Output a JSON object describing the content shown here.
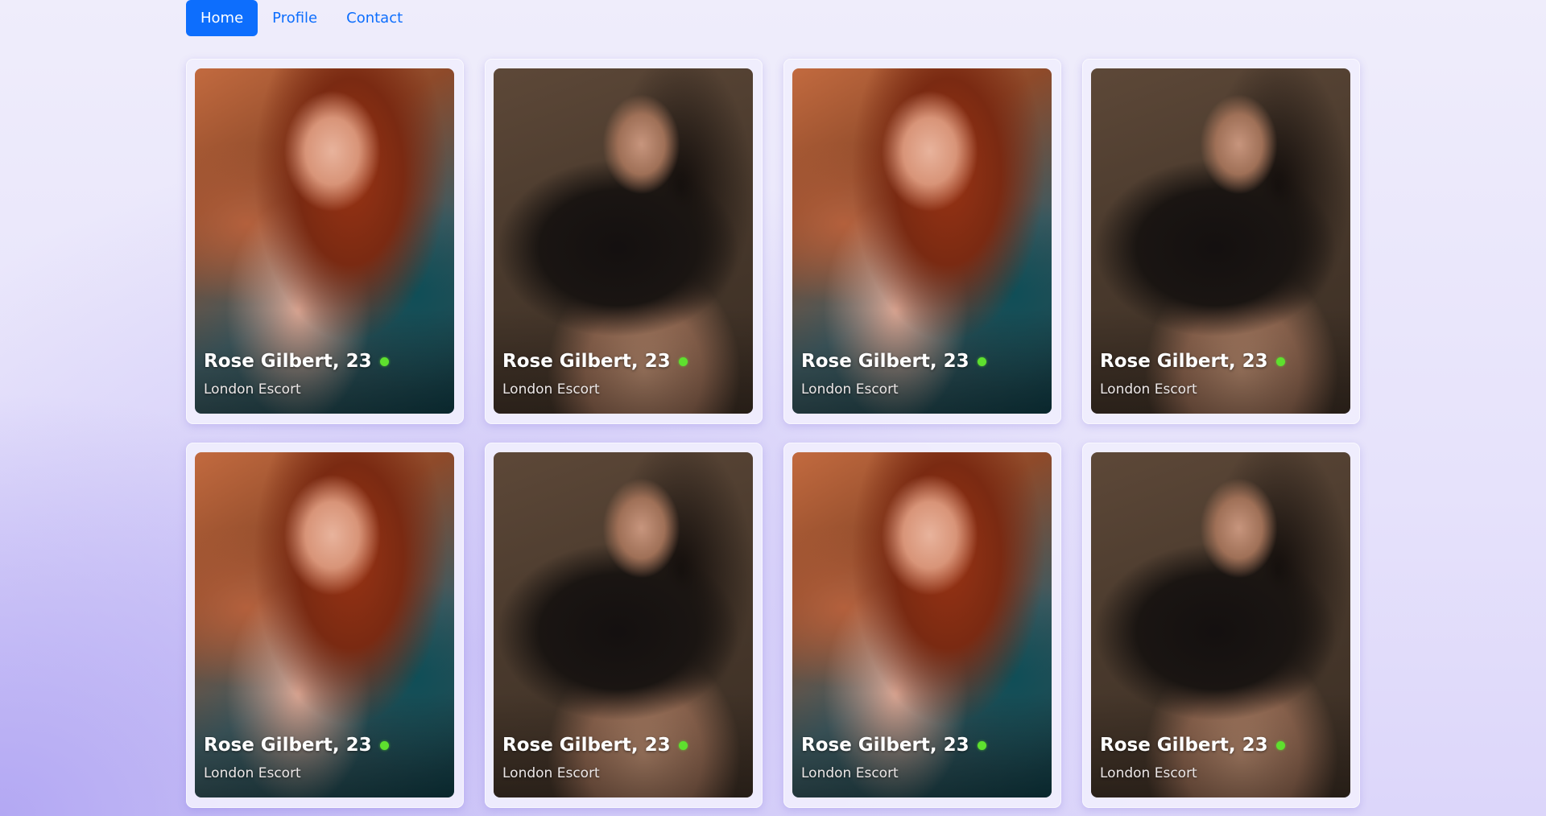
{
  "nav": {
    "items": [
      {
        "label": "Home",
        "active": true
      },
      {
        "label": "Profile",
        "active": false
      },
      {
        "label": "Contact",
        "active": false
      }
    ]
  },
  "colors": {
    "accent": "#0d6efd",
    "online_dot": "#5ee02e"
  },
  "cards": [
    {
      "name": "Rose Gilbert, 23",
      "subtitle": "London Escort",
      "photo": "redhead-portrait",
      "online": true
    },
    {
      "name": "Rose Gilbert, 23",
      "subtitle": "London Escort",
      "photo": "dark-hair-black-top-portrait",
      "online": true
    },
    {
      "name": "Rose Gilbert, 23",
      "subtitle": "London Escort",
      "photo": "redhead-portrait",
      "online": true
    },
    {
      "name": "Rose Gilbert, 23",
      "subtitle": "London Escort",
      "photo": "dark-hair-black-top-portrait",
      "online": true
    },
    {
      "name": "Rose Gilbert, 23",
      "subtitle": "London Escort",
      "photo": "redhead-portrait",
      "online": true
    },
    {
      "name": "Rose Gilbert, 23",
      "subtitle": "London Escort",
      "photo": "dark-hair-black-top-portrait",
      "online": true
    },
    {
      "name": "Rose Gilbert, 23",
      "subtitle": "London Escort",
      "photo": "redhead-portrait",
      "online": true
    },
    {
      "name": "Rose Gilbert, 23",
      "subtitle": "London Escort",
      "photo": "dark-hair-black-top-portrait",
      "online": true
    }
  ]
}
